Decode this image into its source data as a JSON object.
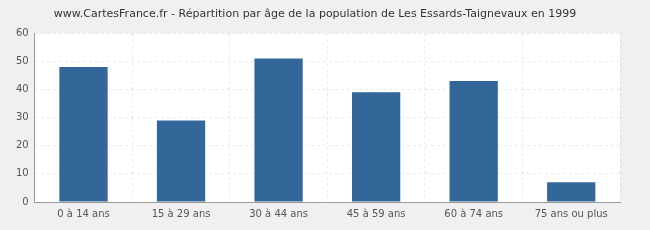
{
  "chart_data": {
    "type": "bar",
    "title": "www.CartesFrance.fr - Répartition par âge de la population de Les Essards-Taignevaux en 1999",
    "categories": [
      "0 à 14 ans",
      "15 à 29 ans",
      "30 à 44 ans",
      "45 à 59 ans",
      "60 à 74 ans",
      "75 ans ou plus"
    ],
    "values": [
      48,
      29,
      51,
      39,
      43,
      7
    ],
    "color": "#336699",
    "ylim": [
      0,
      60
    ],
    "yticks": [
      0,
      10,
      20,
      30,
      40,
      50,
      60
    ],
    "grid": true
  }
}
